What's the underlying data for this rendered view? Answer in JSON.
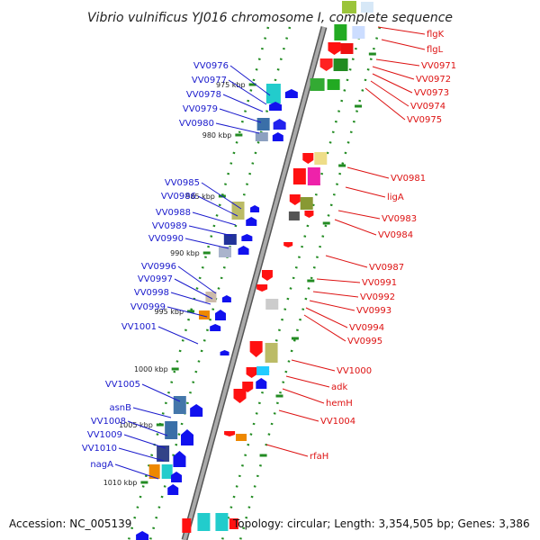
{
  "title": "Vibrio vulnificus YJ016 chromosome I, complete sequence",
  "footer": {
    "accession": "Accession: NC_005139",
    "info": "Topology: circular; Length: 3,354,505 bp; Genes: 3,386"
  },
  "kbp_ticks": [
    "975 kbp",
    "980 kbp",
    "985 kbp",
    "990 kbp",
    "995 kbp",
    "1000 kbp",
    "1005 kbp",
    "1010 kbp"
  ],
  "left_labels": [
    "VV0976",
    "VV0977",
    "VV0978",
    "VV0979",
    "VV0980",
    "VV0985",
    "VV0986",
    "VV0988",
    "VV0989",
    "VV0990",
    "VV0996",
    "VV0997",
    "VV0998",
    "VV0999",
    "VV1001",
    "VV1005",
    "asnB",
    "VV1008",
    "VV1009",
    "VV1010",
    "nagA"
  ],
  "right_labels": [
    "flgK",
    "flgL",
    "VV0971",
    "VV0972",
    "VV0973",
    "VV0974",
    "VV0975",
    "VV0981",
    "ligA",
    "VV0983",
    "VV0984",
    "VV0987",
    "VV0991",
    "VV0992",
    "VV0993",
    "VV0994",
    "VV0995",
    "VV1000",
    "adk",
    "hemH",
    "VV1004",
    "rfaH"
  ],
  "colors": {
    "left_label": "#1a1acc",
    "right_label": "#dd1111",
    "backbone": "#888888",
    "strand_dots": "#228b22",
    "forward_genes": "#1010e0",
    "reverse_genes": "#ee1111"
  }
}
